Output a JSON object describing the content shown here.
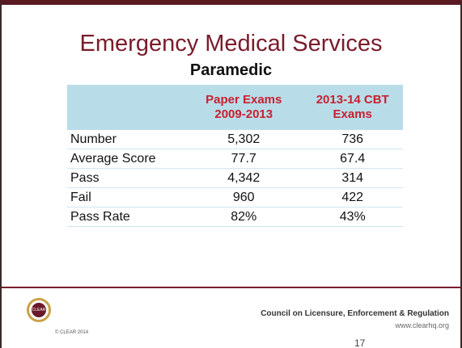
{
  "header": {
    "title": "Emergency Medical Services",
    "subtitle": "Paramedic"
  },
  "table": {
    "headers": [
      "Paper Exams 2009-2013",
      "2013-14 CBT Exams"
    ],
    "rows": [
      [
        "Number",
        "5,302",
        "736"
      ],
      [
        "Average Score",
        "77.7",
        "67.4"
      ],
      [
        "Pass",
        "4,342",
        "314"
      ],
      [
        "Fail",
        "960",
        "422"
      ],
      [
        "Pass Rate",
        "82%",
        "43%"
      ]
    ]
  },
  "footer": {
    "logo": "CLEAR",
    "copyright": "© CLEAR 2014",
    "org": "Council on Licensure, Enforcement & Regulation",
    "url": "www.clearhq.org",
    "page": "17"
  }
}
